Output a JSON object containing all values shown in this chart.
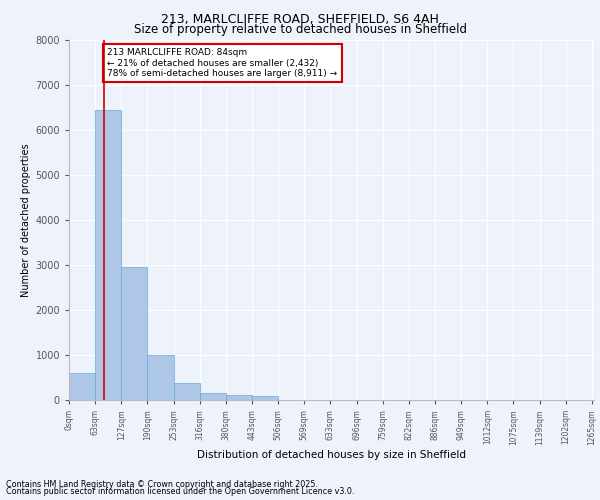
{
  "title_line1": "213, MARLCLIFFE ROAD, SHEFFIELD, S6 4AH",
  "title_line2": "Size of property relative to detached houses in Sheffield",
  "xlabel": "Distribution of detached houses by size in Sheffield",
  "ylabel": "Number of detached properties",
  "bin_labels": [
    "0sqm",
    "63sqm",
    "127sqm",
    "190sqm",
    "253sqm",
    "316sqm",
    "380sqm",
    "443sqm",
    "506sqm",
    "569sqm",
    "633sqm",
    "696sqm",
    "759sqm",
    "822sqm",
    "886sqm",
    "949sqm",
    "1012sqm",
    "1075sqm",
    "1139sqm",
    "1202sqm",
    "1265sqm"
  ],
  "bar_heights": [
    600,
    6450,
    2960,
    990,
    370,
    165,
    110,
    80,
    0,
    0,
    0,
    0,
    0,
    0,
    0,
    0,
    0,
    0,
    0,
    0
  ],
  "bar_color": "#aec6e8",
  "bar_edge_color": "#6aaad4",
  "property_line_x": 84,
  "bin_width": 63,
  "annotation_text": "213 MARLCLIFFE ROAD: 84sqm\n← 21% of detached houses are smaller (2,432)\n78% of semi-detached houses are larger (8,911) →",
  "annotation_box_color": "#ffffff",
  "annotation_box_edge_color": "#cc0000",
  "property_line_color": "#cc0000",
  "ylim": [
    0,
    8000
  ],
  "yticks": [
    0,
    1000,
    2000,
    3000,
    4000,
    5000,
    6000,
    7000,
    8000
  ],
  "background_color": "#eef2fb",
  "grid_color": "#ffffff",
  "footer_line1": "Contains HM Land Registry data © Crown copyright and database right 2025.",
  "footer_line2": "Contains public sector information licensed under the Open Government Licence v3.0."
}
